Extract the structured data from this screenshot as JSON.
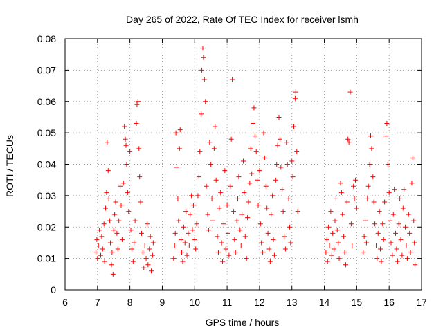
{
  "chart_data": {
    "type": "scatter",
    "title": "Day 265 of 2022, Rate Of TEC Index for receiver lsmh",
    "xlabel": "GPS time / hours",
    "ylabel": "ROTI / TECUs",
    "xlim": [
      6,
      17
    ],
    "ylim": [
      0,
      0.08
    ],
    "x_ticks": [
      "6",
      "7",
      "8",
      "9",
      "10",
      "11",
      "12",
      "13",
      "14",
      "15",
      "16",
      "17"
    ],
    "y_ticks": [
      "0",
      "0.01",
      "0.02",
      "0.03",
      "0.04",
      "0.05",
      "0.06",
      "0.07",
      "0.08"
    ],
    "grid": true,
    "marker": "+",
    "series_color": "#ff0000",
    "series": [
      {
        "name": "ROTI",
        "points": [
          [
            6.95,
            0.012
          ],
          [
            6.98,
            0.016
          ],
          [
            7.0,
            0.01
          ],
          [
            7.03,
            0.014
          ],
          [
            7.06,
            0.019
          ],
          [
            7.1,
            0.011
          ],
          [
            7.13,
            0.017
          ],
          [
            7.16,
            0.013
          ],
          [
            7.2,
            0.021
          ],
          [
            7.22,
            0.009
          ],
          [
            7.25,
            0.026
          ],
          [
            7.28,
            0.031
          ],
          [
            7.3,
            0.047
          ],
          [
            7.33,
            0.038
          ],
          [
            7.35,
            0.029
          ],
          [
            7.38,
            0.022
          ],
          [
            7.4,
            0.015
          ],
          [
            7.43,
            0.008
          ],
          [
            7.45,
            0.012
          ],
          [
            7.48,
            0.005
          ],
          [
            7.5,
            0.019
          ],
          [
            7.53,
            0.024
          ],
          [
            7.56,
            0.028
          ],
          [
            7.6,
            0.018
          ],
          [
            7.63,
            0.013
          ],
          [
            7.66,
            0.022
          ],
          [
            7.7,
            0.033
          ],
          [
            7.73,
            0.027
          ],
          [
            7.76,
            0.016
          ],
          [
            7.8,
            0.034
          ],
          [
            7.83,
            0.052
          ],
          [
            7.86,
            0.048
          ],
          [
            7.88,
            0.046
          ],
          [
            7.9,
            0.04
          ],
          [
            7.93,
            0.031
          ],
          [
            7.96,
            0.025
          ],
          [
            8.0,
            0.044
          ],
          [
            8.03,
            0.019
          ],
          [
            8.06,
            0.013
          ],
          [
            8.1,
            0.009
          ],
          [
            8.13,
            0.015
          ],
          [
            8.16,
            0.022
          ],
          [
            8.2,
            0.053
          ],
          [
            8.22,
            0.059
          ],
          [
            8.25,
            0.06
          ],
          [
            8.28,
            0.045
          ],
          [
            8.3,
            0.036
          ],
          [
            8.33,
            0.028
          ],
          [
            8.36,
            0.018
          ],
          [
            8.4,
            0.012
          ],
          [
            8.43,
            0.007
          ],
          [
            8.46,
            0.014
          ],
          [
            8.5,
            0.01
          ],
          [
            8.53,
            0.021
          ],
          [
            8.56,
            0.008
          ],
          [
            8.6,
            0.013
          ],
          [
            8.63,
            0.017
          ],
          [
            8.66,
            0.006
          ],
          [
            8.7,
            0.011
          ],
          [
            8.72,
            0.015
          ],
          [
            9.35,
            0.01
          ],
          [
            9.38,
            0.014
          ],
          [
            9.4,
            0.018
          ],
          [
            9.42,
            0.05
          ],
          [
            9.45,
            0.039
          ],
          [
            9.48,
            0.029
          ],
          [
            9.5,
            0.022
          ],
          [
            9.53,
            0.045
          ],
          [
            9.55,
            0.051
          ],
          [
            9.58,
            0.016
          ],
          [
            9.6,
            0.012
          ],
          [
            9.63,
            0.009
          ],
          [
            9.66,
            0.02
          ],
          [
            9.7,
            0.015
          ],
          [
            9.73,
            0.025
          ],
          [
            9.76,
            0.011
          ],
          [
            9.8,
            0.018
          ],
          [
            9.83,
            0.014
          ],
          [
            9.86,
            0.024
          ],
          [
            9.9,
            0.03
          ],
          [
            9.93,
            0.019
          ],
          [
            9.96,
            0.027
          ],
          [
            10.0,
            0.016
          ],
          [
            10.03,
            0.013
          ],
          [
            10.06,
            0.021
          ],
          [
            10.1,
            0.03
          ],
          [
            10.13,
            0.036
          ],
          [
            10.16,
            0.044
          ],
          [
            10.2,
            0.056
          ],
          [
            10.22,
            0.07
          ],
          [
            10.25,
            0.077
          ],
          [
            10.27,
            0.074
          ],
          [
            10.3,
            0.067
          ],
          [
            10.33,
            0.06
          ],
          [
            10.36,
            0.033
          ],
          [
            10.4,
            0.024
          ],
          [
            10.43,
            0.019
          ],
          [
            10.46,
            0.047
          ],
          [
            10.5,
            0.04
          ],
          [
            10.53,
            0.029
          ],
          [
            10.56,
            0.022
          ],
          [
            10.6,
            0.045
          ],
          [
            10.63,
            0.052
          ],
          [
            10.66,
            0.035
          ],
          [
            10.7,
            0.017
          ],
          [
            10.73,
            0.012
          ],
          [
            10.76,
            0.026
          ],
          [
            10.8,
            0.031
          ],
          [
            10.83,
            0.015
          ],
          [
            10.86,
            0.009
          ],
          [
            10.9,
            0.021
          ],
          [
            10.93,
            0.038
          ],
          [
            10.96,
            0.013
          ],
          [
            11.0,
            0.027
          ],
          [
            11.03,
            0.018
          ],
          [
            11.06,
            0.011
          ],
          [
            11.1,
            0.033
          ],
          [
            11.13,
            0.048
          ],
          [
            11.16,
            0.067
          ],
          [
            11.2,
            0.025
          ],
          [
            11.23,
            0.016
          ],
          [
            11.26,
            0.012
          ],
          [
            11.3,
            0.022
          ],
          [
            11.33,
            0.029
          ],
          [
            11.36,
            0.036
          ],
          [
            11.4,
            0.019
          ],
          [
            11.43,
            0.014
          ],
          [
            11.46,
            0.024
          ],
          [
            11.5,
            0.041
          ],
          [
            11.53,
            0.031
          ],
          [
            11.56,
            0.017
          ],
          [
            11.6,
            0.01
          ],
          [
            11.63,
            0.023
          ],
          [
            11.66,
            0.028
          ],
          [
            11.7,
            0.034
          ],
          [
            11.73,
            0.045
          ],
          [
            11.76,
            0.037
          ],
          [
            11.8,
            0.053
          ],
          [
            11.83,
            0.058
          ],
          [
            11.86,
            0.049
          ],
          [
            11.9,
            0.044
          ],
          [
            11.93,
            0.035
          ],
          [
            11.96,
            0.027
          ],
          [
            12.0,
            0.038
          ],
          [
            12.03,
            0.021
          ],
          [
            12.06,
            0.015
          ],
          [
            12.1,
            0.012
          ],
          [
            12.13,
            0.05
          ],
          [
            12.16,
            0.042
          ],
          [
            12.2,
            0.033
          ],
          [
            12.23,
            0.026
          ],
          [
            12.26,
            0.018
          ],
          [
            12.3,
            0.013
          ],
          [
            12.33,
            0.009
          ],
          [
            12.36,
            0.024
          ],
          [
            12.4,
            0.03
          ],
          [
            12.43,
            0.016
          ],
          [
            12.46,
            0.011
          ],
          [
            12.5,
            0.035
          ],
          [
            12.53,
            0.04
          ],
          [
            12.56,
            0.046
          ],
          [
            12.6,
            0.055
          ],
          [
            12.63,
            0.048
          ],
          [
            12.66,
            0.039
          ],
          [
            12.7,
            0.032
          ],
          [
            12.73,
            0.025
          ],
          [
            12.76,
            0.017
          ],
          [
            12.8,
            0.013
          ],
          [
            12.83,
            0.047
          ],
          [
            12.86,
            0.04
          ],
          [
            12.9,
            0.029
          ],
          [
            12.93,
            0.02
          ],
          [
            12.96,
            0.015
          ],
          [
            13.0,
            0.041
          ],
          [
            13.03,
            0.036
          ],
          [
            13.06,
            0.052
          ],
          [
            13.1,
            0.061
          ],
          [
            13.12,
            0.063
          ],
          [
            13.15,
            0.044
          ],
          [
            13.18,
            0.025
          ],
          [
            14.05,
            0.012
          ],
          [
            14.08,
            0.016
          ],
          [
            14.1,
            0.009
          ],
          [
            14.13,
            0.02
          ],
          [
            14.16,
            0.014
          ],
          [
            14.2,
            0.025
          ],
          [
            14.23,
            0.011
          ],
          [
            14.26,
            0.018
          ],
          [
            14.3,
            0.013
          ],
          [
            14.33,
            0.022
          ],
          [
            14.36,
            0.029
          ],
          [
            14.4,
            0.019
          ],
          [
            14.43,
            0.015
          ],
          [
            14.46,
            0.01
          ],
          [
            14.5,
            0.034
          ],
          [
            14.53,
            0.031
          ],
          [
            14.56,
            0.024
          ],
          [
            14.6,
            0.017
          ],
          [
            14.63,
            0.012
          ],
          [
            14.66,
            0.008
          ],
          [
            14.7,
            0.028
          ],
          [
            14.73,
            0.048
          ],
          [
            14.76,
            0.047
          ],
          [
            14.8,
            0.063
          ],
          [
            14.83,
            0.021
          ],
          [
            14.86,
            0.014
          ],
          [
            14.9,
            0.033
          ],
          [
            14.93,
            0.029
          ],
          [
            14.96,
            0.035
          ],
          [
            15.0,
            0.026
          ],
          [
            15.2,
            0.012
          ],
          [
            15.23,
            0.017
          ],
          [
            15.26,
            0.022
          ],
          [
            15.3,
            0.015
          ],
          [
            15.33,
            0.029
          ],
          [
            15.36,
            0.033
          ],
          [
            15.4,
            0.04
          ],
          [
            15.43,
            0.049
          ],
          [
            15.46,
            0.045
          ],
          [
            15.5,
            0.036
          ],
          [
            15.53,
            0.028
          ],
          [
            15.56,
            0.021
          ],
          [
            15.6,
            0.014
          ],
          [
            15.63,
            0.01
          ],
          [
            15.66,
            0.018
          ],
          [
            15.7,
            0.025
          ],
          [
            15.73,
            0.013
          ],
          [
            15.76,
            0.009
          ],
          [
            15.8,
            0.021
          ],
          [
            15.83,
            0.016
          ],
          [
            15.86,
            0.028
          ],
          [
            15.9,
            0.049
          ],
          [
            15.93,
            0.053
          ],
          [
            15.96,
            0.04
          ],
          [
            16.0,
            0.031
          ],
          [
            16.03,
            0.022
          ],
          [
            16.06,
            0.015
          ],
          [
            16.1,
            0.011
          ],
          [
            16.13,
            0.024
          ],
          [
            16.16,
            0.032
          ],
          [
            16.2,
            0.018
          ],
          [
            16.23,
            0.013
          ],
          [
            16.26,
            0.009
          ],
          [
            16.3,
            0.021
          ],
          [
            16.33,
            0.029
          ],
          [
            16.36,
            0.016
          ],
          [
            16.4,
            0.011
          ],
          [
            16.43,
            0.026
          ],
          [
            16.46,
            0.032
          ],
          [
            16.5,
            0.02
          ],
          [
            16.53,
            0.014
          ],
          [
            16.56,
            0.01
          ],
          [
            16.6,
            0.024
          ],
          [
            16.63,
            0.018
          ],
          [
            16.66,
            0.012
          ],
          [
            16.7,
            0.034
          ],
          [
            16.73,
            0.042
          ],
          [
            16.76,
            0.022
          ],
          [
            16.78,
            0.015
          ],
          [
            16.8,
            0.008
          ]
        ]
      }
    ]
  }
}
